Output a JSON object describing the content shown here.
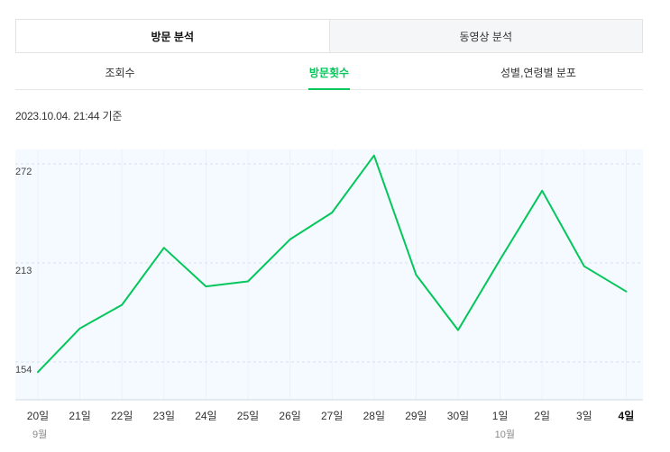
{
  "tabs_main": [
    {
      "label": "방문 분석",
      "active": true
    },
    {
      "label": "동영상 분석",
      "active": false
    }
  ],
  "tabs_sub": [
    {
      "label": "조회수",
      "active": false
    },
    {
      "label": "방문횟수",
      "active": true
    },
    {
      "label": "성별,연령별 분포",
      "active": false
    }
  ],
  "timestamp": "2023.10.04. 21:44 기준",
  "colors": {
    "line": "#03c75a",
    "plot_bg": "#f4faff",
    "grid": "#d6e2ee"
  },
  "chart_data": {
    "type": "line",
    "x": [
      "20일",
      "21일",
      "22일",
      "23일",
      "24일",
      "25일",
      "26일",
      "27일",
      "28일",
      "29일",
      "30일",
      "1일",
      "2일",
      "3일",
      "4일"
    ],
    "month_labels": [
      {
        "at": "20일",
        "label": "9월"
      },
      {
        "at": "1일",
        "label": "10월"
      }
    ],
    "bold_label": "4일",
    "series": [
      {
        "values": [
          148,
          174,
          188,
          222,
          199,
          202,
          227,
          243,
          277,
          206,
          173,
          215,
          256,
          211,
          196
        ]
      }
    ],
    "yticks": [
      154,
      213,
      272
    ],
    "ylim": [
      130,
      280
    ],
    "grid": true
  }
}
